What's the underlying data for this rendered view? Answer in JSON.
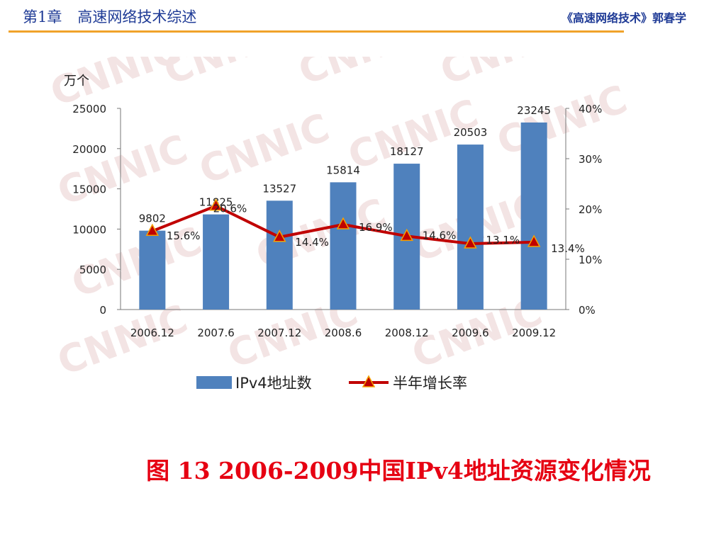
{
  "header": {
    "chapter": "第1章",
    "chapter_title": "高速网络技术综述",
    "book": "《高速网络技术》郭春学"
  },
  "caption": "图 13  2006-2009中国IPv4地址资源变化情况",
  "watermark": "CNNIC",
  "colors": {
    "bar": "#4f81bd",
    "line": "#c00000",
    "marker_fill": "#c00000",
    "marker_stroke": "#f5a000",
    "header_text": "#1f3b96",
    "header_rule": "#f0a22a",
    "caption": "#e60012"
  },
  "chart_data": {
    "type": "bar",
    "categories": [
      "2006.12",
      "2007.6",
      "2007.12",
      "2008.6",
      "2008.12",
      "2009.6",
      "2009.12"
    ],
    "series": [
      {
        "name": "IPv4地址数",
        "type": "bar",
        "axis": "left",
        "values": [
          9802,
          11825,
          13527,
          15814,
          18127,
          20503,
          23245
        ]
      },
      {
        "name": "半年增长率",
        "type": "line",
        "axis": "right",
        "values": [
          15.6,
          20.6,
          14.4,
          16.9,
          14.6,
          13.1,
          13.4
        ],
        "labels": [
          "15.6%",
          "20.6%",
          "14.4%",
          "16.9%",
          "14.6%",
          "13.1%",
          "13.4%"
        ]
      }
    ],
    "y_unit": "万个",
    "ylim": [
      0,
      25000
    ],
    "yticks": [
      0,
      5000,
      10000,
      15000,
      20000,
      25000
    ],
    "y2lim": [
      0,
      40
    ],
    "y2ticks": [
      "0%",
      "10%",
      "20%",
      "30%",
      "40%"
    ],
    "grid": false,
    "legend_position": "bottom"
  }
}
